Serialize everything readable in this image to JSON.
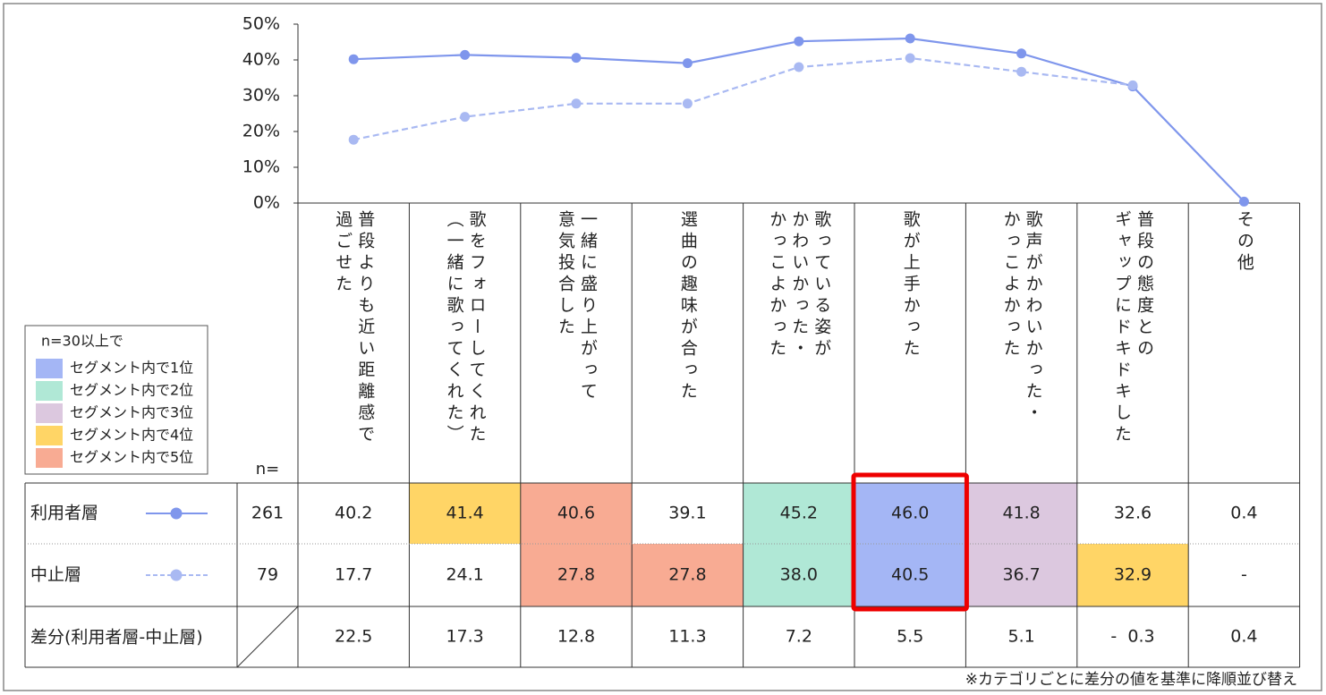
{
  "chart_data": {
    "type": "line",
    "ylim": [
      0,
      50
    ],
    "yticks": [
      {
        "value": 0,
        "label": "0%"
      },
      {
        "value": 10,
        "label": "10%"
      },
      {
        "value": 20,
        "label": "20%"
      },
      {
        "value": 30,
        "label": "30%"
      },
      {
        "value": 40,
        "label": "40%"
      },
      {
        "value": 50,
        "label": "50%"
      }
    ],
    "categories": [
      "普段よりも近い距離感で\n過ごせた",
      "歌をフォローしてくれた\n（一緒に歌ってくれた）",
      "一緒に盛り上がって\n意気投合した",
      "選曲の趣味が合った",
      "歌っている姿が\nかわいかった・\nかっこよかった",
      "歌が上手かった",
      "歌声がかわいかった・\nかっこよかった",
      "普段の態度との\nギャップにドキドキした",
      "その他"
    ],
    "n_label": "n=",
    "series": [
      {
        "name": "利用者層",
        "color": "#7f96ec",
        "dashed": false,
        "n": 261,
        "values": [
          40.2,
          41.4,
          40.6,
          39.1,
          45.2,
          46.0,
          41.8,
          32.6,
          0.4
        ],
        "value_labels": [
          "40.2",
          "41.4",
          "40.6",
          "39.1",
          "45.2",
          "46.0",
          "41.8",
          "32.6",
          "0.4"
        ],
        "cell_colors": [
          null,
          "#ffd566",
          "#f8ab93",
          null,
          "#b0e8d6",
          "#a4b6f5",
          "#dcc8df",
          null,
          null
        ]
      },
      {
        "name": "中止層",
        "color": "#a9b9f2",
        "dashed": true,
        "n": 79,
        "values": [
          17.7,
          24.1,
          27.8,
          27.8,
          38.0,
          40.5,
          36.7,
          32.9,
          null
        ],
        "value_labels": [
          "17.7",
          "24.1",
          "27.8",
          "27.8",
          "38.0",
          "40.5",
          "36.7",
          "32.9",
          "-"
        ],
        "cell_colors": [
          null,
          null,
          "#f8ab93",
          "#f8ab93",
          "#b0e8d6",
          "#a4b6f5",
          "#dcc8df",
          "#ffd566",
          null
        ]
      }
    ],
    "difference": {
      "name": "差分(利用者層-中止層)",
      "values": [
        22.5,
        17.3,
        12.8,
        11.3,
        7.2,
        5.5,
        5.1,
        -0.3,
        0.4
      ],
      "value_labels": [
        "22.5",
        "17.3",
        "12.8",
        "11.3",
        "7.2",
        "5.5",
        "5.1",
        "-  0.3",
        "0.4"
      ]
    },
    "legend": {
      "title": "n=30以上で",
      "items": [
        {
          "name": "セグメント内で1位",
          "color": "#a4b6f5"
        },
        {
          "name": "セグメント内で2位",
          "color": "#b0e8d6"
        },
        {
          "name": "セグメント内で3位",
          "color": "#dcc8df"
        },
        {
          "name": "セグメント内で4位",
          "color": "#ffd566"
        },
        {
          "name": "セグメント内で5位",
          "color": "#f8ab93"
        }
      ]
    },
    "footnote": "※カテゴリごとに差分の値を基準に降順並び替え"
  }
}
